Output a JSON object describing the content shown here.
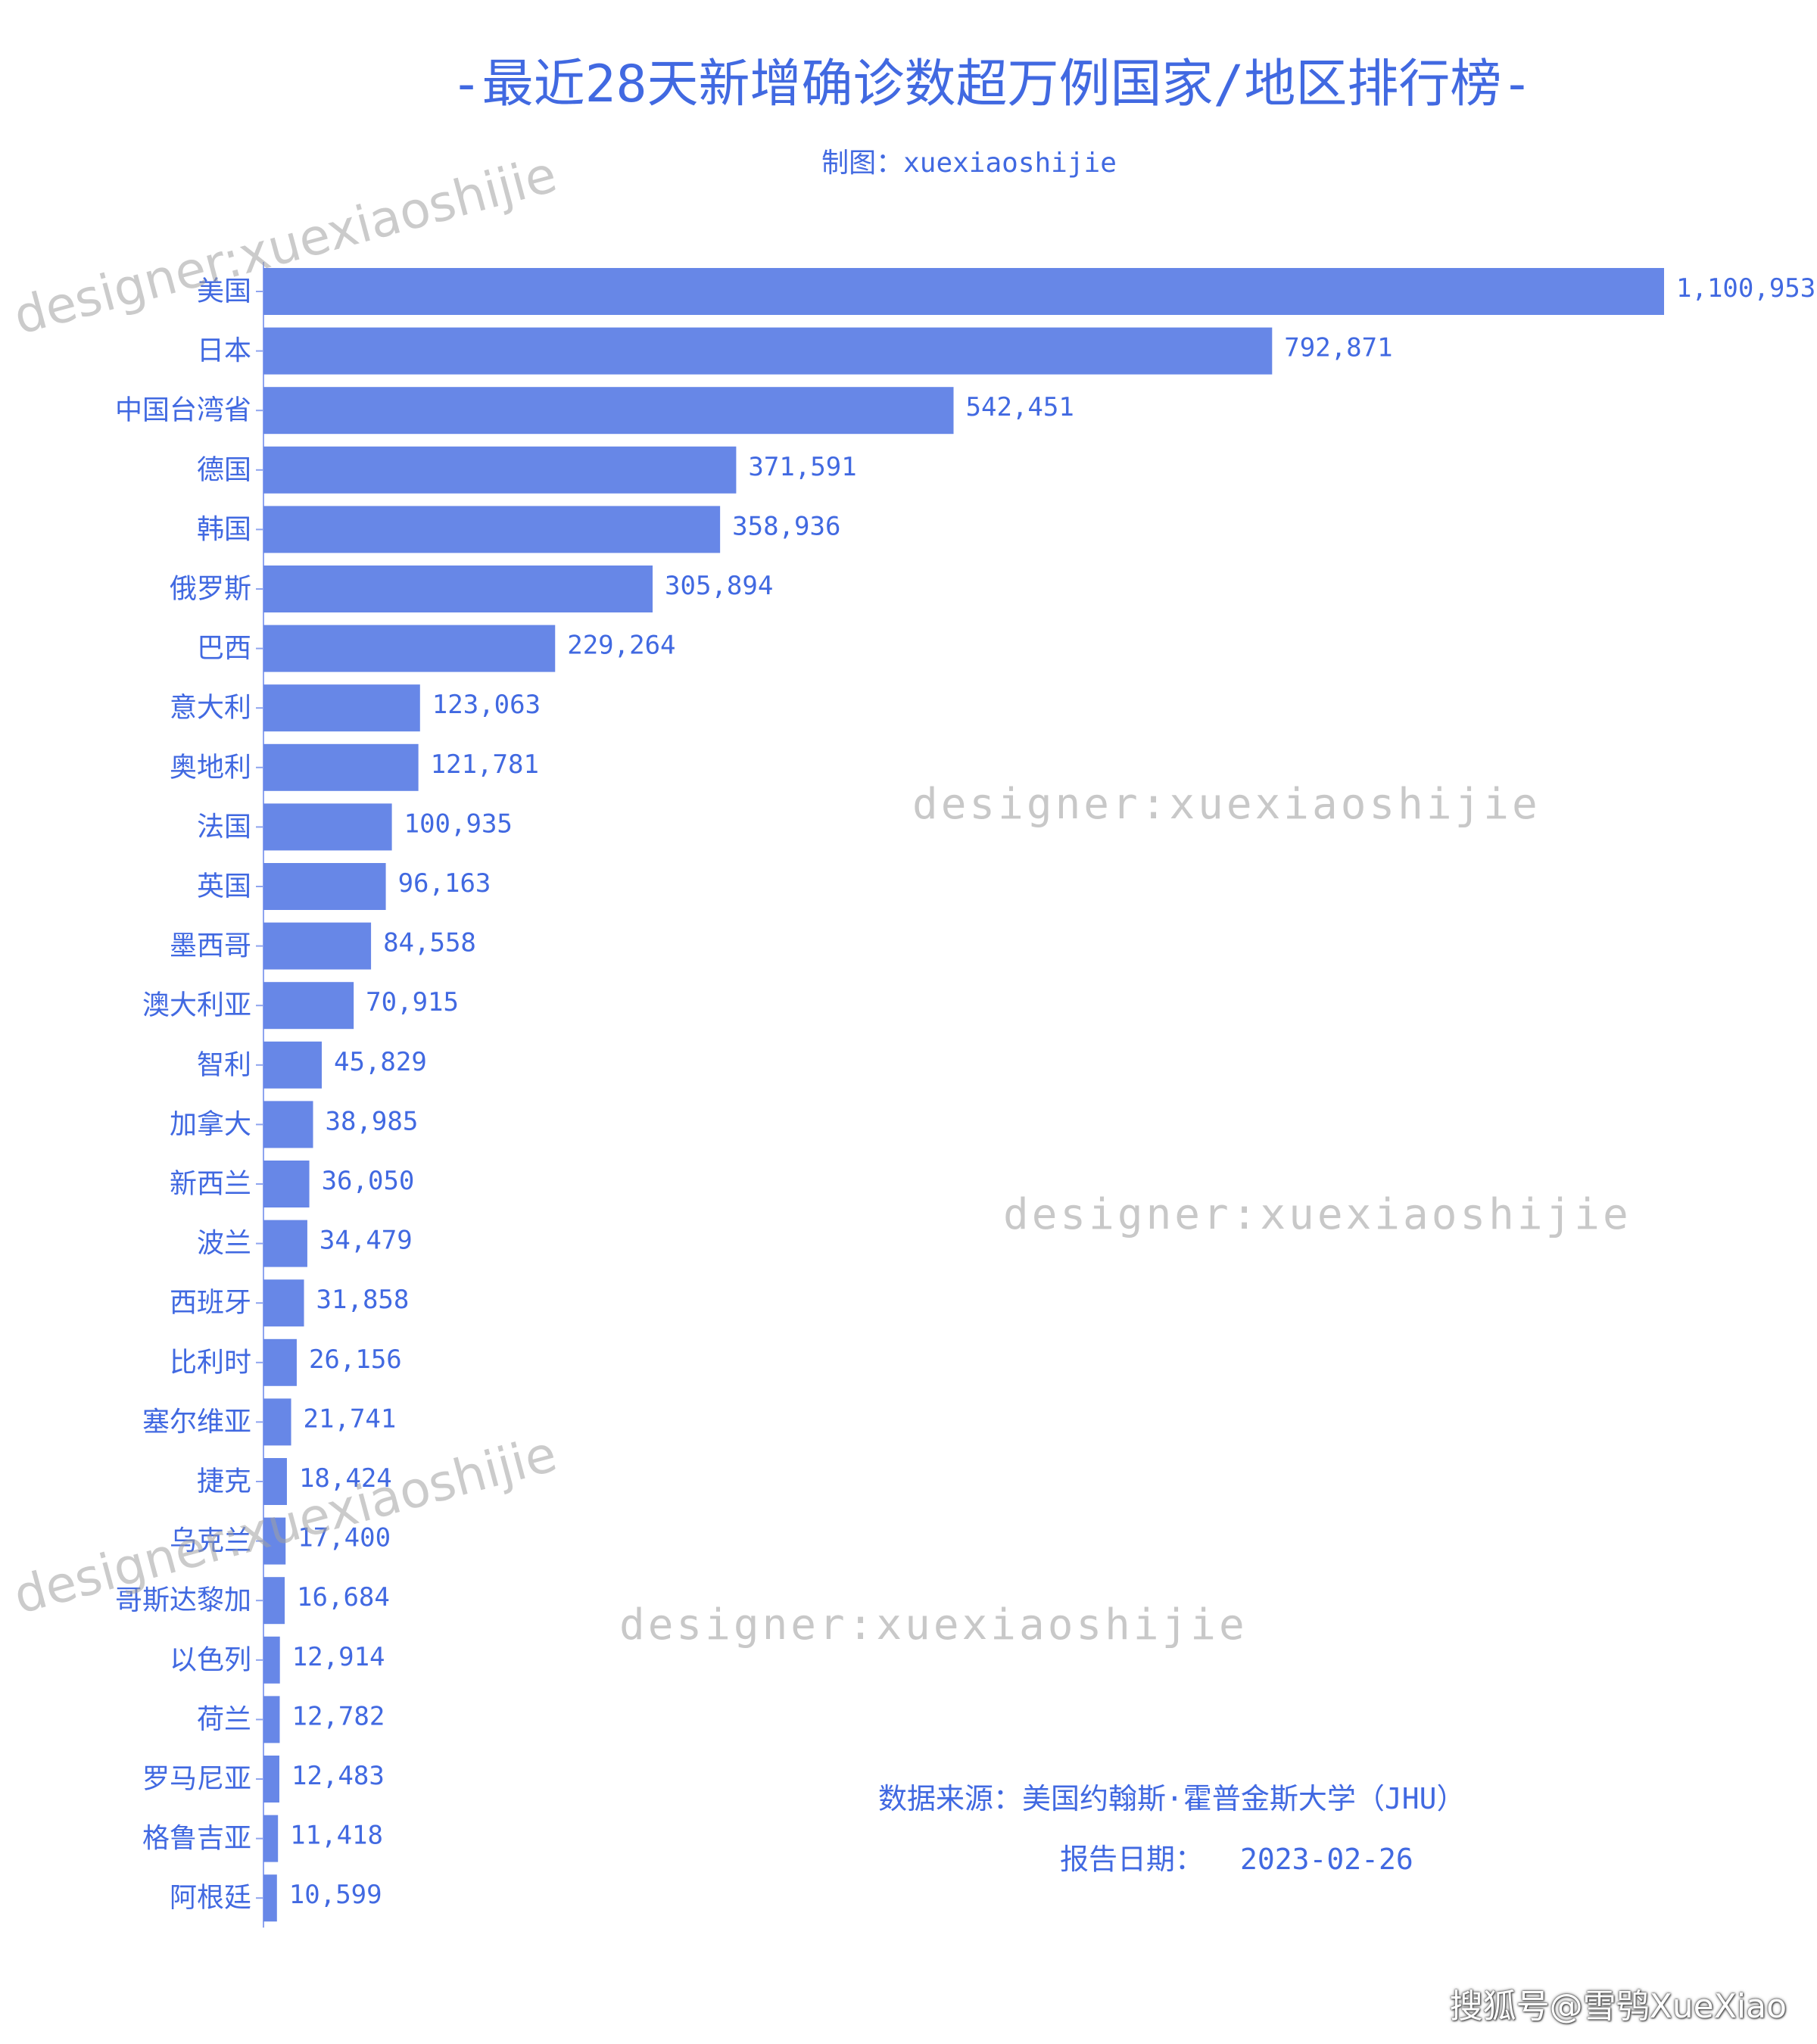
{
  "title": "-最近28天新增确诊数超万例国家/地区排行榜-",
  "subtitle": "制图：xuexiaoshijie",
  "source_note": "数据来源：美国约翰斯·霍普金斯大学（JHU）",
  "report_date_label": "报告日期：",
  "report_date": "2023-02-26",
  "watermark_text": "designer:xuexiaoshijie",
  "corner_credit": "搜狐号@雪鸮XueXiao",
  "colors": {
    "bar": "#6787e7",
    "text": "#4169e1",
    "watermark": "#c8c8c8"
  },
  "chart_data": {
    "type": "bar",
    "orientation": "horizontal",
    "categories": [
      "美国",
      "日本",
      "中国台湾省",
      "德国",
      "韩国",
      "俄罗斯",
      "巴西",
      "意大利",
      "奥地利",
      "法国",
      "英国",
      "墨西哥",
      "澳大利亚",
      "智利",
      "加拿大",
      "新西兰",
      "波兰",
      "西班牙",
      "比利时",
      "塞尔维亚",
      "捷克",
      "乌克兰",
      "哥斯达黎加",
      "以色列",
      "荷兰",
      "罗马尼亚",
      "格鲁吉亚",
      "阿根廷"
    ],
    "values": [
      1100953,
      792871,
      542451,
      371591,
      358936,
      305894,
      229264,
      123063,
      121781,
      100935,
      96163,
      84558,
      70915,
      45829,
      38985,
      36050,
      34479,
      31858,
      26156,
      21741,
      18424,
      17400,
      16684,
      12914,
      12782,
      12483,
      11418,
      10599
    ],
    "value_labels": [
      "1,100,953",
      "792,871",
      "542,451",
      "371,591",
      "358,936",
      "305,894",
      "229,264",
      "123,063",
      "121,781",
      "100,935",
      "96,163",
      "84,558",
      "70,915",
      "45,829",
      "38,985",
      "36,050",
      "34,479",
      "31,858",
      "26,156",
      "21,741",
      "18,424",
      "17,400",
      "16,684",
      "12,914",
      "12,782",
      "12,483",
      "11,418",
      "10,599"
    ],
    "xlim": [
      0,
      1100953
    ],
    "grid": false,
    "legend": false
  }
}
